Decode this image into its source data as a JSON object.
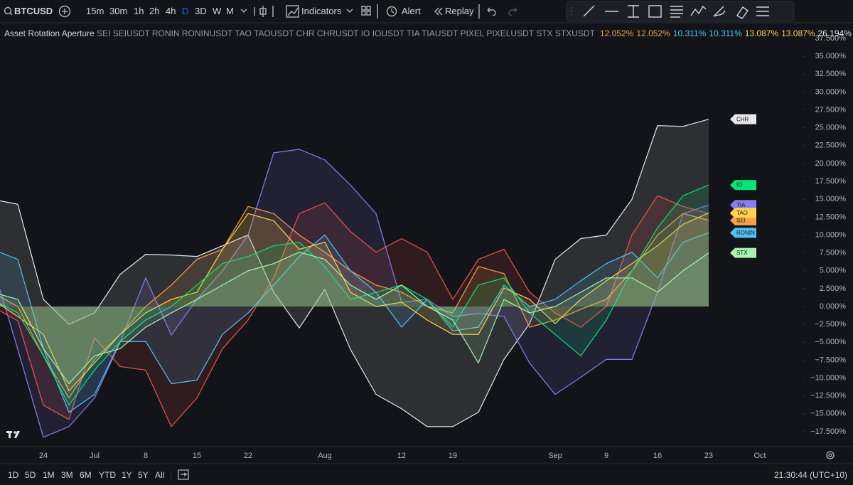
{
  "toolbar": {
    "symbol": "BTCUSD",
    "intervals": [
      "15m",
      "30m",
      "1h",
      "2h",
      "4h",
      "D",
      "3D",
      "W",
      "M"
    ],
    "indicators": "Indicators",
    "alert": "Alert",
    "replay": "Replay"
  },
  "indicator": {
    "name": "Asset Rotation Aperture",
    "inputs": "SEI SEIUSDT RONIN RONINUSDT TAO TAOUSDT CHR CHRUSDT IO IOUSDT TIA TIAUSDT PIXEL PIXELUSDT STX STXUSDT",
    "values": [
      {
        "text": "12.052%",
        "color": "#f5a04a"
      },
      {
        "text": "12.052%",
        "color": "#f5a04a"
      },
      {
        "text": "10.311%",
        "color": "#4fc3f7"
      },
      {
        "text": "10.311%",
        "color": "#4fc3f7"
      },
      {
        "text": "13.087%",
        "color": "#ffd54f"
      },
      {
        "text": "13.087%",
        "color": "#ffd54f"
      },
      {
        "text": "26.194%",
        "color": "#e0e3eb"
      }
    ],
    "more": "..."
  },
  "bottom_bar": {
    "ranges": [
      "1D",
      "5D",
      "1M",
      "3M",
      "6M",
      "YTD",
      "1Y",
      "5Y",
      "All"
    ],
    "clock": "21:30:44 (UTC+10)"
  },
  "chart_data": {
    "type": "area",
    "categories": [
      null,
      null,
      "24",
      null,
      "Jul",
      null,
      "8",
      null,
      "15",
      null,
      "22",
      null,
      null,
      "Aug",
      null,
      null,
      "12",
      null,
      "19",
      null,
      null,
      null,
      "Sep",
      null,
      "9",
      null,
      "16",
      null,
      "23",
      null,
      "Oct"
    ],
    "ylim": [
      -19.6,
      38.9
    ],
    "yticks": [
      {
        "value": 37.5,
        "label": "37.500%"
      },
      {
        "value": 35,
        "label": "35.000%"
      },
      {
        "value": 32.5,
        "label": "32.500%"
      },
      {
        "value": 30,
        "label": "30.000%"
      },
      {
        "value": 27.5,
        "label": "27.500%"
      },
      {
        "value": 25,
        "label": "25.000%"
      },
      {
        "value": 22.5,
        "label": "22.500%"
      },
      {
        "value": 20,
        "label": "20.000%"
      },
      {
        "value": 17.5,
        "label": "17.500%"
      },
      {
        "value": 15,
        "label": "15.000%"
      },
      {
        "value": 12.5,
        "label": "12.500%"
      },
      {
        "value": 10,
        "label": "10.000%"
      },
      {
        "value": 7.5,
        "label": "7.500%"
      },
      {
        "value": 5,
        "label": "5.000%"
      },
      {
        "value": 2.5,
        "label": "2.500%"
      },
      {
        "value": 0,
        "label": "0.000%"
      },
      {
        "value": -2.5,
        "label": "−2.500%"
      },
      {
        "value": -5,
        "label": "−5.000%"
      },
      {
        "value": -7.5,
        "label": "−7.500%"
      },
      {
        "value": -10,
        "label": "−10.000%"
      },
      {
        "value": -12.5,
        "label": "−12.500%"
      },
      {
        "value": -15,
        "label": "−15.000%"
      },
      {
        "value": -17.5,
        "label": "−17.500%"
      }
    ],
    "series": [
      {
        "name": "CHR",
        "color": "#e8e8e8",
        "values": [
          15,
          14.3,
          1,
          -2.5,
          -0.9,
          4.5,
          7.3,
          7.2,
          7,
          8.5,
          10,
          2,
          -3,
          2.4,
          -6,
          -12.3,
          -14.3,
          -16.8,
          -16.8,
          -14.8,
          -7.4,
          -2.4,
          6.6,
          9.5,
          10,
          15,
          25.3,
          25.2,
          26.2,
          null,
          null
        ]
      },
      {
        "name": "TIA",
        "color": "#8c7cf0",
        "values": [
          6,
          -6,
          -18.3,
          -16.8,
          -12.8,
          -5,
          4,
          -4,
          1,
          5,
          10,
          21.5,
          22,
          20.5,
          17,
          13,
          0.6,
          1,
          -1.4,
          -1,
          -1.4,
          -7.9,
          -12.3,
          -9.9,
          -7.4,
          -7.4,
          2,
          13,
          14.2,
          null,
          null
        ]
      },
      {
        "name": "PIXEL",
        "color": "#ef5350",
        "values": [
          0,
          -2,
          -13.8,
          -15.8,
          -4.4,
          -8.4,
          -8.9,
          -16.8,
          -12.8,
          -5.9,
          -1.9,
          4,
          13,
          14.5,
          10.5,
          7.6,
          9.5,
          7.6,
          1,
          6.6,
          8,
          2,
          -0.9,
          -2.9,
          0,
          10,
          15.5,
          14,
          13,
          null,
          null
        ]
      },
      {
        "name": "SEI",
        "color": "#f5a04a",
        "values": [
          2,
          0,
          -6.9,
          -12.8,
          -7.4,
          -3.9,
          0,
          3,
          6.6,
          8,
          14,
          13,
          10,
          7.6,
          5,
          3,
          2,
          0,
          -0.9,
          5.6,
          4.6,
          -2.9,
          -1.9,
          -0.4,
          1,
          5,
          10,
          13,
          12.05,
          null,
          null
        ]
      },
      {
        "name": "RONIN",
        "color": "#4fc3f7",
        "values": [
          8,
          6.6,
          -5.9,
          -14.8,
          -12.3,
          -4.9,
          -4.9,
          -10.8,
          -10.3,
          -3.9,
          -0.9,
          3,
          7,
          10,
          5,
          2,
          -2.9,
          1,
          -3.4,
          -2.9,
          3,
          0,
          1,
          3.6,
          6,
          7.6,
          4,
          9,
          10.31,
          null,
          null
        ]
      },
      {
        "name": "TAO",
        "color": "#ffd54f",
        "values": [
          1,
          -1.4,
          -3.9,
          -11.8,
          -7.9,
          -3.9,
          -0.9,
          1,
          2,
          8,
          13,
          12,
          8,
          9,
          2,
          0,
          0.6,
          -1.9,
          -3.9,
          -3.9,
          2.6,
          1,
          -2.4,
          1,
          3.6,
          6,
          8.5,
          11.5,
          13.09,
          null,
          null
        ]
      },
      {
        "name": "IO",
        "color": "#00e676",
        "values": [
          1,
          -0.9,
          -6.9,
          -13.8,
          -8.9,
          -4.9,
          -1.9,
          0,
          3,
          6,
          7,
          8.5,
          9,
          5.6,
          1,
          2,
          3,
          1,
          -2.9,
          3,
          4,
          -0.9,
          -3.9,
          -6.9,
          -1.9,
          5,
          11,
          15.5,
          17,
          null,
          null
        ]
      },
      {
        "name": "STX",
        "color": "#a5f5b0",
        "values": [
          2,
          1,
          -5.9,
          -10.8,
          -6.9,
          -5.9,
          -2.9,
          -0.9,
          1,
          3,
          5,
          6,
          7.6,
          6.6,
          3,
          1,
          3,
          0,
          -1.9,
          -7.9,
          1,
          -0.9,
          0,
          2,
          4,
          4,
          2,
          5,
          7.5,
          null,
          null
        ]
      }
    ]
  }
}
